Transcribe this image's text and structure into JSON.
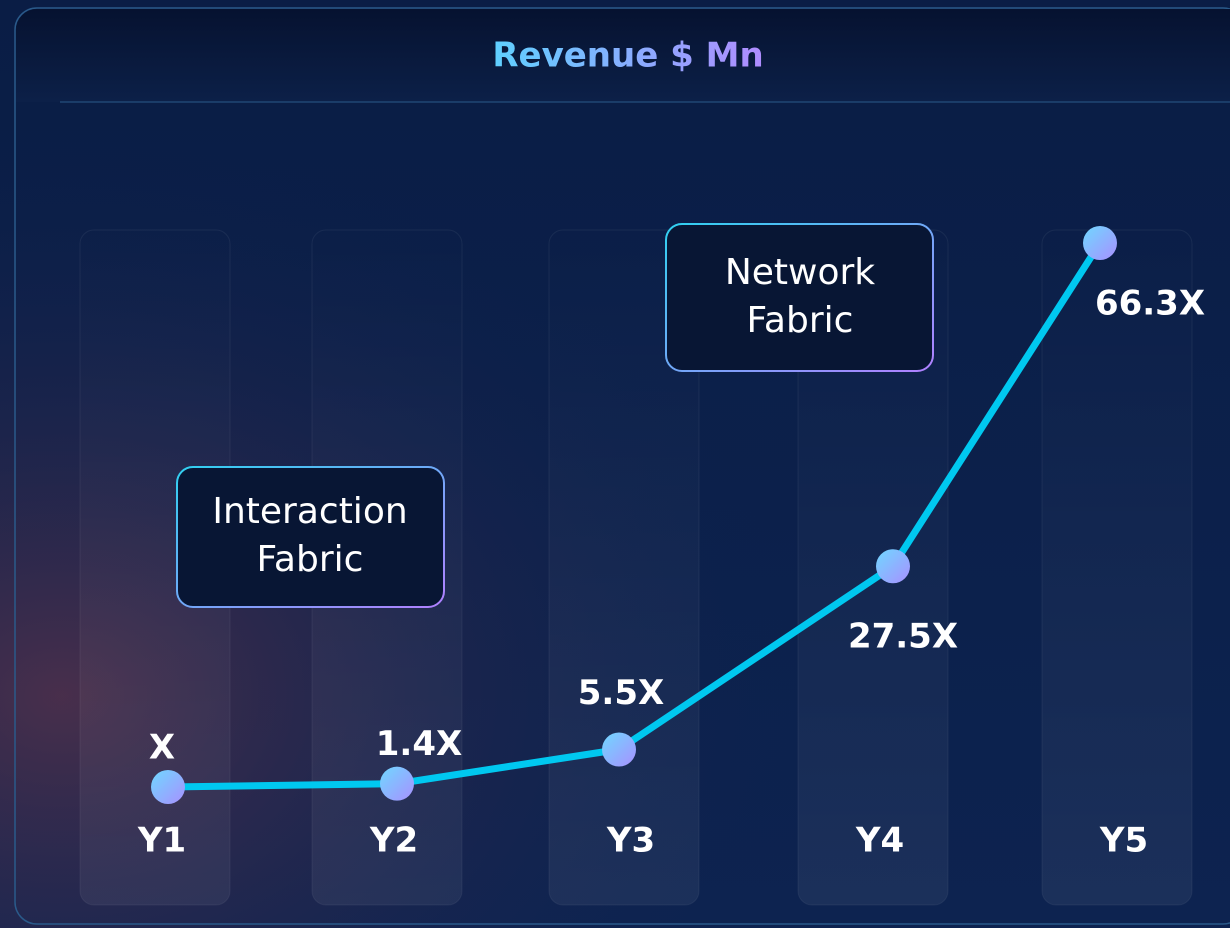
{
  "chart_data": {
    "type": "line",
    "title": "Revenue $ Mn",
    "categories": [
      "Y1",
      "Y2",
      "Y3",
      "Y4",
      "Y5"
    ],
    "values": [
      1,
      1.4,
      5.5,
      27.5,
      66.3
    ],
    "value_labels": [
      "X",
      "1.4X",
      "5.5X",
      "27.5X",
      "66.3X"
    ],
    "color": "#00c8f0",
    "annotations": [
      "Interaction Fabric",
      "Network Fabric"
    ]
  }
}
